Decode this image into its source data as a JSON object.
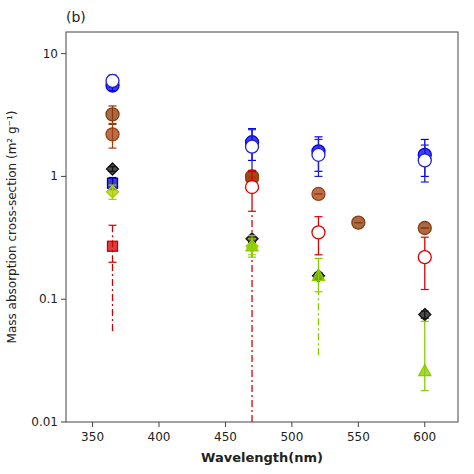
{
  "chart_data": {
    "type": "scatter",
    "title": "(b)",
    "xlabel": "Wavelength(nm)",
    "ylabel": "Mass absorption cross-section (m² g⁻¹)",
    "log": "y",
    "grid": false,
    "xlim": [
      330,
      625
    ],
    "ylim": [
      0.01,
      15
    ],
    "xticks": [
      350,
      400,
      450,
      500,
      550,
      600
    ],
    "yticks": [
      0.01,
      0.1,
      1,
      10
    ],
    "x": [
      365,
      470,
      520,
      550,
      600
    ],
    "series": [
      {
        "color": "#8B3A0A",
        "marker": "circle",
        "line_style": "solid",
        "values": [
          3.2,
          0.97,
          null,
          0.42,
          0.38
        ],
        "yerr_low": [
          0.55,
          0.0,
          null,
          0.0,
          0.0
        ],
        "yerr_high": [
          0.55,
          0.0,
          null,
          0.0,
          0.0
        ]
      },
      {
        "color": "#A04010",
        "marker": "circle",
        "line_style": "solid",
        "values": [
          2.2,
          1.0,
          0.72,
          null,
          null
        ],
        "yerr_low": [
          0.5,
          0.0,
          0.0,
          null,
          null
        ],
        "yerr_high": [
          0.5,
          0.0,
          0.0,
          null,
          null
        ]
      },
      {
        "color": "#0000EE",
        "marker": "circle",
        "line_style": "solid",
        "values": [
          5.5,
          1.9,
          1.6,
          null,
          1.5
        ],
        "yerr_low": [
          0.5,
          0.55,
          0.5,
          null,
          0.5
        ],
        "yerr_high": [
          0.5,
          0.55,
          0.5,
          null,
          0.5
        ]
      },
      {
        "color": "#2222CC",
        "marker": "open-circle",
        "line_style": "solid",
        "values": [
          6.0,
          1.75,
          1.5,
          null,
          1.35
        ],
        "yerr_low": [
          0.7,
          0.65,
          0.5,
          null,
          0.45
        ],
        "yerr_high": [
          0.7,
          0.65,
          0.5,
          null,
          0.45
        ]
      },
      {
        "color": "#DD0000",
        "marker": "open-circle",
        "line_style": "solid",
        "values": [
          null,
          0.82,
          0.35,
          null,
          0.22
        ],
        "yerr_low": [
          null,
          0.3,
          0.12,
          null,
          0.1
        ],
        "yerr_high": [
          null,
          0.3,
          0.12,
          null,
          0.1
        ],
        "extend_low": [
          null,
          0.01,
          null,
          null,
          null
        ]
      },
      {
        "color": "#CC0000",
        "marker": "square",
        "line_style": "dashdot",
        "values": [
          0.27,
          null,
          null,
          null,
          null
        ],
        "yerr_low": [
          0.07,
          null,
          null,
          null,
          null
        ],
        "yerr_high": [
          0.13,
          null,
          null,
          null,
          null
        ],
        "extend_low": [
          0.055,
          null,
          null,
          null,
          null
        ]
      },
      {
        "color": "#0000BB",
        "marker": "square",
        "line_style": "solid",
        "values": [
          0.88,
          null,
          null,
          null,
          null
        ],
        "yerr_low": [
          0.1,
          null,
          null,
          null,
          null
        ],
        "yerr_high": [
          0.1,
          null,
          null,
          null,
          null
        ]
      },
      {
        "color": "#111111",
        "marker": "diamond",
        "line_style": "solid",
        "values": [
          1.15,
          0.31,
          0.155,
          null,
          0.075
        ],
        "yerr_low": [
          0.05,
          0.02,
          0.01,
          null,
          0.005
        ],
        "yerr_high": [
          0.05,
          0.02,
          0.01,
          null,
          0.005
        ]
      },
      {
        "color": "#AACC00",
        "marker": "diamond",
        "line_style": "solid",
        "values": [
          0.75,
          0.27,
          null,
          null,
          null
        ],
        "yerr_low": [
          0.1,
          0.04,
          null,
          null,
          null
        ],
        "yerr_high": [
          0.1,
          0.04,
          null,
          null,
          null
        ]
      },
      {
        "color": "#88CC00",
        "marker": "triangle",
        "line_style": "solid",
        "values": [
          null,
          0.27,
          0.155,
          null,
          0.026
        ],
        "yerr_low": [
          null,
          0.05,
          0.04,
          null,
          0.008
        ],
        "yerr_high": [
          null,
          0.06,
          0.06,
          null,
          0.04
        ],
        "extend_low": [
          null,
          null,
          0.035,
          null,
          0.018
        ]
      }
    ]
  }
}
